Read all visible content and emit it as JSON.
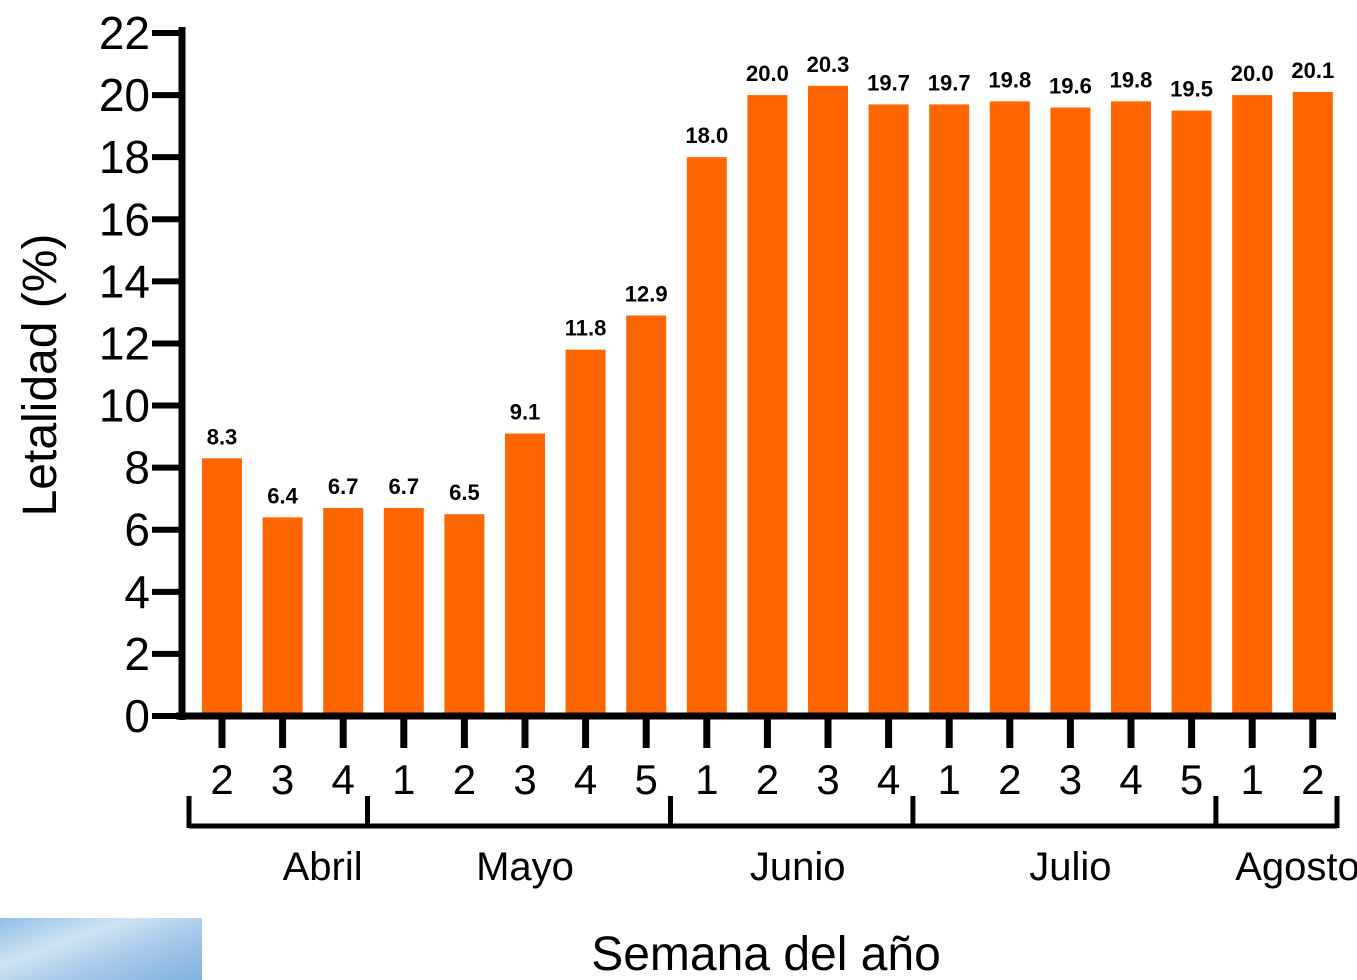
{
  "chart_data": {
    "type": "bar",
    "categories": [
      "2",
      "3",
      "4",
      "1",
      "2",
      "3",
      "4",
      "5",
      "1",
      "2",
      "3",
      "4",
      "1",
      "2",
      "3",
      "4",
      "5",
      "1",
      "2"
    ],
    "values": [
      8.3,
      6.4,
      6.7,
      6.7,
      6.5,
      9.1,
      11.8,
      12.9,
      18.0,
      20.0,
      20.3,
      19.7,
      19.7,
      19.8,
      19.6,
      19.8,
      19.5,
      20.0,
      20.1
    ],
    "value_labels": [
      "8.3",
      "6.4",
      "6.7",
      "6.7",
      "6.5",
      "9.1",
      "11.8",
      "12.9",
      "18.0",
      "20.0",
      "20.3",
      "19.7",
      "19.7",
      "19.8",
      "19.6",
      "19.8",
      "19.5",
      "20.0",
      "20.1"
    ],
    "groups": [
      {
        "label": "Abril",
        "count": 3
      },
      {
        "label": "Mayo",
        "count": 5
      },
      {
        "label": "Junio",
        "count": 4
      },
      {
        "label": "Julio",
        "count": 5
      },
      {
        "label": "Agosto",
        "count": 2
      }
    ],
    "ylabel": "Letalidad (%)",
    "xlabel": "Semana del año",
    "ylim": [
      0,
      22
    ],
    "yticks": [
      "0",
      "2",
      "4",
      "6",
      "8",
      "10",
      "12",
      "14",
      "16",
      "18",
      "20",
      "22"
    ],
    "bar_color": "#ff6600",
    "grid": false
  }
}
